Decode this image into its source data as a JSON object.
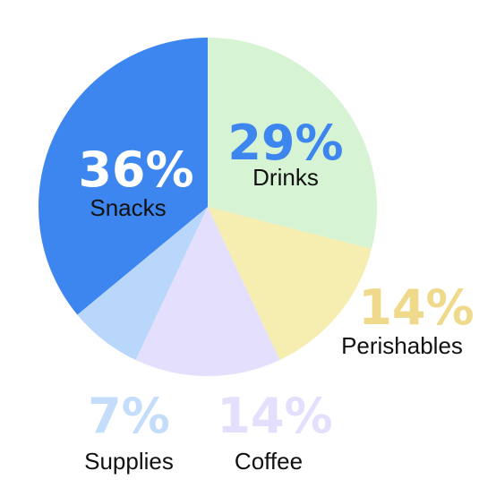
{
  "chart_data": {
    "type": "pie",
    "slices": [
      {
        "label": "Drinks",
        "value": 29,
        "value_label": "29%",
        "color": "#d6f3d4",
        "text_color": "#3d86ef"
      },
      {
        "label": "Perishables",
        "value": 14,
        "value_label": "14%",
        "color": "#f6edb1",
        "text_color": "#efd98a"
      },
      {
        "label": "Coffee",
        "value": 14,
        "value_label": "14%",
        "color": "#e4dffc",
        "text_color": "#e4dffc"
      },
      {
        "label": "Supplies",
        "value": 7,
        "value_label": "7%",
        "color": "#b9d7fb",
        "text_color": "#c3ddfb"
      },
      {
        "label": "Snacks",
        "value": 36,
        "value_label": "36%",
        "color": "#3d86ef",
        "text_color": "#ffffff"
      }
    ],
    "start_angle": "12 o'clock",
    "direction": "clockwise"
  }
}
